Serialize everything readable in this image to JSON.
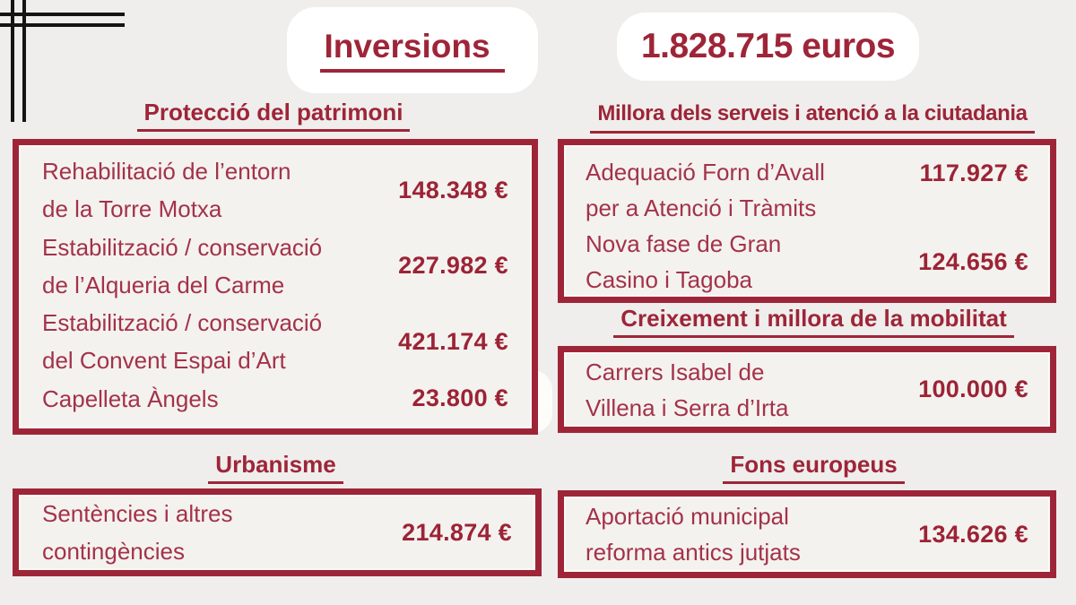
{
  "page": {
    "colors": {
      "background": "#efeeec",
      "accent_maroon": "#9e2538",
      "box_fill": "#f4f2ee",
      "pill_white": "#ffffff",
      "decor_black": "#141414"
    }
  },
  "header": {
    "title": "Inversions",
    "total": "1.828.715 euros"
  },
  "sections": [
    {
      "id": "patrimoni",
      "title": "Protecció del patrimoni",
      "items": [
        {
          "lines": [
            "Rehabilitació de l’entorn",
            "de la Torre Motxa"
          ],
          "amount": "148.348 €"
        },
        {
          "lines": [
            "Estabilització / conservació",
            "de l’Alqueria del Carme"
          ],
          "amount": "227.982 €"
        },
        {
          "lines": [
            "Estabilització / conservació",
            "del Convent Espai d’Art"
          ],
          "amount": "421.174 €"
        },
        {
          "lines": [
            "Capelleta Àngels"
          ],
          "amount": "23.800 €"
        }
      ]
    },
    {
      "id": "serveis",
      "title": "Millora dels serveis i atenció a la ciutadania",
      "items": [
        {
          "lines": [
            "Adequació Forn d’Avall",
            "per a Atenció i Tràmits"
          ],
          "amount": "117.927 €"
        },
        {
          "lines": [
            "Nova fase de Gran",
            "Casino i Tagoba"
          ],
          "amount": "124.656 €"
        }
      ]
    },
    {
      "id": "mobilitat",
      "title": "Creixement i millora de la mobilitat",
      "items": [
        {
          "lines": [
            "Carrers Isabel de",
            "Villena i Serra d’Irta"
          ],
          "amount": "100.000 €"
        }
      ]
    },
    {
      "id": "urbanisme",
      "title": "Urbanisme",
      "items": [
        {
          "lines": [
            "Sentències i altres",
            "contingències"
          ],
          "amount": "214.874 €"
        }
      ]
    },
    {
      "id": "fons",
      "title": "Fons europeus",
      "items": [
        {
          "lines": [
            "Aportació municipal",
            "reforma antics jutjats"
          ],
          "amount": "134.626 €"
        }
      ]
    }
  ]
}
